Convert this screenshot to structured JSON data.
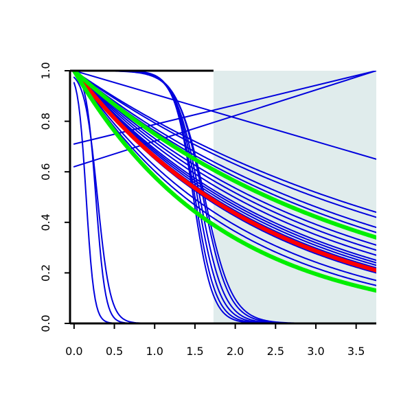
{
  "chart_data": {
    "type": "line",
    "title": "",
    "xlabel": "",
    "ylabel": "",
    "xlim": [
      -0.05,
      3.75
    ],
    "ylim": [
      0,
      1
    ],
    "x_ticks": [
      0.0,
      0.5,
      1.0,
      1.5,
      2.0,
      2.5,
      3.0,
      3.5
    ],
    "x_tick_labels": [
      "0.0",
      "0.5",
      "1.0",
      "1.5",
      "2.0",
      "2.5",
      "3.0",
      "3.5"
    ],
    "y_ticks": [
      0.0,
      0.2,
      0.4,
      0.6,
      0.8,
      1.0
    ],
    "y_tick_labels": [
      "0.0",
      "0.2",
      "0.4",
      "0.6",
      "0.8",
      "1.0"
    ],
    "shaded_region": {
      "x": [
        1.73,
        3.75
      ],
      "color": "#e0ecec"
    },
    "colors": {
      "blue": "#0000dd",
      "red": "#ff0000",
      "green": "#00ee00",
      "axis": "#000000"
    },
    "series": [
      {
        "color": "#0000dd",
        "kind": "linear",
        "points": [
          [
            0,
            0.71
          ],
          [
            3.75,
            1.0
          ]
        ]
      },
      {
        "color": "#0000dd",
        "kind": "linear",
        "points": [
          [
            0,
            0.62
          ],
          [
            3.75,
            1.0
          ]
        ]
      },
      {
        "color": "#0000dd",
        "kind": "linear",
        "points": [
          [
            0,
            1.0
          ],
          [
            3.75,
            0.65
          ]
        ]
      },
      {
        "color": "#0000dd",
        "kind": "exp",
        "end": 0.44
      },
      {
        "color": "#0000dd",
        "kind": "exp",
        "end": 0.42
      },
      {
        "color": "#0000dd",
        "kind": "exp",
        "end": 0.38
      },
      {
        "color": "#0000dd",
        "kind": "exp",
        "end": 0.36
      },
      {
        "color": "#0000dd",
        "kind": "exp",
        "end": 0.31
      },
      {
        "color": "#0000dd",
        "kind": "exp",
        "end": 0.29
      },
      {
        "color": "#0000dd",
        "kind": "exp",
        "end": 0.27
      },
      {
        "color": "#0000dd",
        "kind": "exp",
        "end": 0.25
      },
      {
        "color": "#0000dd",
        "kind": "exp",
        "end": 0.24
      },
      {
        "color": "#0000dd",
        "kind": "exp",
        "end": 0.23
      },
      {
        "color": "#0000dd",
        "kind": "exp",
        "end": 0.22
      },
      {
        "color": "#0000dd",
        "kind": "exp",
        "end": 0.2
      },
      {
        "color": "#0000dd",
        "kind": "exp",
        "end": 0.17
      },
      {
        "color": "#0000dd",
        "kind": "exp",
        "end": 0.15
      },
      {
        "color": "#0000dd",
        "kind": "sigmoid",
        "mid": 0.15,
        "width": 0.05
      },
      {
        "color": "#0000dd",
        "kind": "sigmoid",
        "mid": 0.27,
        "width": 0.06
      },
      {
        "color": "#0000dd",
        "kind": "sigmoid",
        "mid": 0.29,
        "width": 0.08
      },
      {
        "color": "#0000dd",
        "kind": "sigmoid",
        "mid": 1.48,
        "width": 0.12
      },
      {
        "color": "#0000dd",
        "kind": "sigmoid",
        "mid": 1.5,
        "width": 0.13
      },
      {
        "color": "#0000dd",
        "kind": "sigmoid",
        "mid": 1.53,
        "width": 0.14
      },
      {
        "color": "#0000dd",
        "kind": "sigmoid",
        "mid": 1.56,
        "width": 0.15
      },
      {
        "color": "#0000dd",
        "kind": "sigmoid",
        "mid": 1.6,
        "width": 0.16
      },
      {
        "color": "#0000dd",
        "kind": "sigmoid",
        "mid": 1.62,
        "width": 0.17
      },
      {
        "color": "#ff0000",
        "kind": "exp",
        "end": 0.21,
        "thick": true
      },
      {
        "color": "#00ee00",
        "kind": "exp",
        "end": 0.34,
        "thick": true
      },
      {
        "color": "#00ee00",
        "kind": "exp",
        "end": 0.13,
        "thick": true
      }
    ]
  }
}
